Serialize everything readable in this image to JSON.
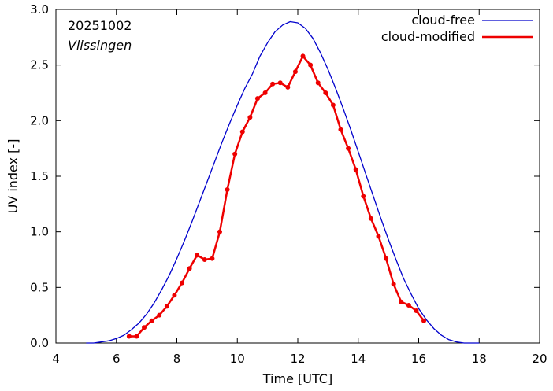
{
  "chart_data": {
    "type": "line",
    "xlabel": "Time  [UTC]",
    "ylabel": "UV index  [-]",
    "xlim": [
      4,
      20
    ],
    "ylim": [
      0,
      3.0
    ],
    "x_ticks": [
      4,
      6,
      8,
      10,
      12,
      14,
      16,
      18,
      20
    ],
    "y_ticks": [
      "0.0",
      "0.5",
      "1.0",
      "1.5",
      "2.0",
      "2.5",
      "3.0"
    ],
    "annotations": [
      "20251002",
      "Vlissingen"
    ],
    "legend_position": "top-right",
    "grid": false,
    "series": [
      {
        "name": "cloud-free",
        "color": "#0000cc",
        "markers": false,
        "x": [
          5.0,
          5.25,
          5.5,
          5.75,
          6.0,
          6.25,
          6.5,
          6.75,
          7.0,
          7.25,
          7.5,
          7.75,
          8.0,
          8.25,
          8.5,
          8.75,
          9.0,
          9.25,
          9.5,
          9.75,
          10.0,
          10.25,
          10.5,
          10.75,
          11.0,
          11.25,
          11.5,
          11.75,
          12.0,
          12.25,
          12.5,
          12.75,
          13.0,
          13.25,
          13.5,
          13.75,
          14.0,
          14.25,
          14.5,
          14.75,
          15.0,
          15.25,
          15.5,
          15.75,
          16.0,
          16.25,
          16.5,
          16.75,
          17.0,
          17.25,
          17.5,
          17.75,
          18.0
        ],
        "y": [
          0.0,
          0.0,
          0.01,
          0.02,
          0.04,
          0.07,
          0.12,
          0.18,
          0.26,
          0.36,
          0.48,
          0.61,
          0.76,
          0.92,
          1.09,
          1.27,
          1.45,
          1.63,
          1.81,
          1.98,
          2.14,
          2.29,
          2.42,
          2.58,
          2.7,
          2.8,
          2.86,
          2.89,
          2.88,
          2.83,
          2.74,
          2.61,
          2.46,
          2.29,
          2.11,
          1.92,
          1.72,
          1.52,
          1.32,
          1.12,
          0.93,
          0.75,
          0.58,
          0.44,
          0.31,
          0.21,
          0.13,
          0.07,
          0.03,
          0.01,
          0.0,
          0.0,
          0.0
        ]
      },
      {
        "name": "cloud-modified",
        "color": "#ee0000",
        "markers": true,
        "x": [
          6.42,
          6.67,
          6.92,
          7.17,
          7.42,
          7.67,
          7.92,
          8.17,
          8.42,
          8.67,
          8.92,
          9.17,
          9.42,
          9.67,
          9.92,
          10.17,
          10.42,
          10.67,
          10.92,
          11.17,
          11.42,
          11.67,
          11.92,
          12.17,
          12.42,
          12.67,
          12.92,
          13.17,
          13.42,
          13.67,
          13.92,
          14.17,
          14.42,
          14.67,
          14.92,
          15.17,
          15.42,
          15.67,
          15.92,
          16.17
        ],
        "y": [
          0.06,
          0.06,
          0.14,
          0.2,
          0.25,
          0.33,
          0.43,
          0.54,
          0.67,
          0.79,
          0.75,
          0.76,
          1.0,
          1.38,
          1.7,
          1.9,
          2.03,
          2.2,
          2.25,
          2.33,
          2.34,
          2.3,
          2.44,
          2.58,
          2.5,
          2.34,
          2.25,
          2.14,
          1.92,
          1.75,
          1.56,
          1.32,
          1.12,
          0.96,
          0.76,
          0.53,
          0.37,
          0.34,
          0.29,
          0.2
        ]
      }
    ]
  }
}
